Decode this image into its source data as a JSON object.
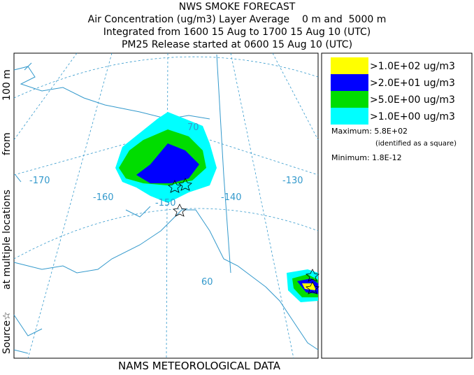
{
  "header": {
    "title": "NWS SMOKE FORECAST",
    "lines": [
      "Air Concentration (ug/m3) Layer Average    0 m and  5000 m",
      "Integrated from 1600 15 Aug to 1700 15 Aug 10 (UTC)",
      "PM25 Release started at 0600 15 Aug 10 (UTC)"
    ]
  },
  "side_label": [
    "Source☆",
    "at multiple locations",
    "from",
    "100 m"
  ],
  "footer": "NAMS METEOROLOGICAL DATA",
  "map": {
    "longitude_labels": [
      "-170",
      "-160",
      "-150",
      "-140",
      "-130"
    ],
    "latitude_labels": [
      "70",
      "60"
    ]
  },
  "legend": {
    "items": [
      {
        "label": ">1.0E+02 ug/m3",
        "color": "#ffff00"
      },
      {
        "label": ">2.0E+01 ug/m3",
        "color": "#0000ff"
      },
      {
        "label": ">5.0E+00 ug/m3",
        "color": "#00dd00"
      },
      {
        "label": ">1.0E+00 ug/m3",
        "color": "#00ffff"
      }
    ],
    "maximum": "Maximum: 5.8E+02",
    "maximum_note": "(identified as a square)",
    "minimum": "Minimum: 1.8E-12"
  }
}
